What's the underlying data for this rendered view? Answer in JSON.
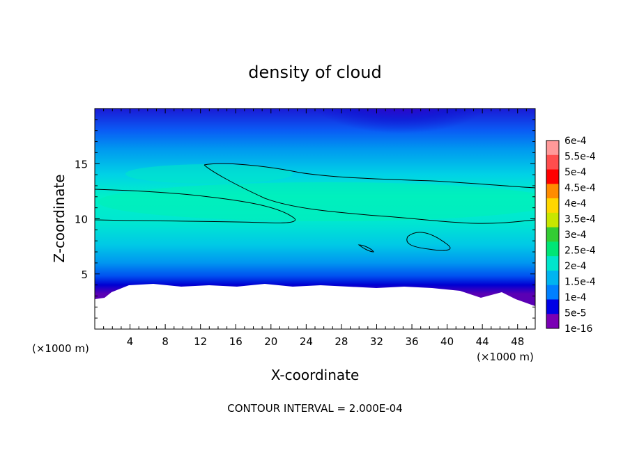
{
  "chart_data": {
    "type": "heatmap",
    "title": "density of cloud",
    "xlabel": "X-coordinate",
    "ylabel": "Z-coordinate",
    "x_unit_label": "(×1000 m)",
    "y_unit_label": "(×1000 m)",
    "xlim": [
      0,
      50
    ],
    "ylim": [
      0,
      20
    ],
    "x_ticks": [
      "4",
      "8",
      "12",
      "16",
      "20",
      "24",
      "28",
      "32",
      "36",
      "40",
      "44",
      "48"
    ],
    "x_tick_values": [
      4,
      8,
      12,
      16,
      20,
      24,
      28,
      32,
      36,
      40,
      44,
      48
    ],
    "y_ticks": [
      "5",
      "10",
      "15"
    ],
    "y_tick_values": [
      5,
      10,
      15
    ],
    "contour_interval_text": "CONTOUR INTERVAL = 2.000E-04",
    "contour_levels": [
      0.0002
    ],
    "colorbar": {
      "labels": [
        "6e-4",
        "5.5e-4",
        "5e-4",
        "4.5e-4",
        "4e-4",
        "3.5e-4",
        "3e-4",
        "2.5e-4",
        "2e-4",
        "1.5e-4",
        "1e-4",
        "5e-5",
        "1e-16"
      ],
      "colors": [
        "#ff9999",
        "#ff4d4d",
        "#ff0000",
        "#ff8c00",
        "#ffd700",
        "#c8e600",
        "#33cc33",
        "#00e676",
        "#00e6cc",
        "#00b4f0",
        "#0080ff",
        "#0000e6",
        "#7a00b4"
      ]
    },
    "field_description_regions": {
      "max_band_z": 12,
      "max_value": 0.00021,
      "low_top_region_x": [
        31,
        40
      ],
      "ground_cutoff_z": 3.5
    }
  }
}
